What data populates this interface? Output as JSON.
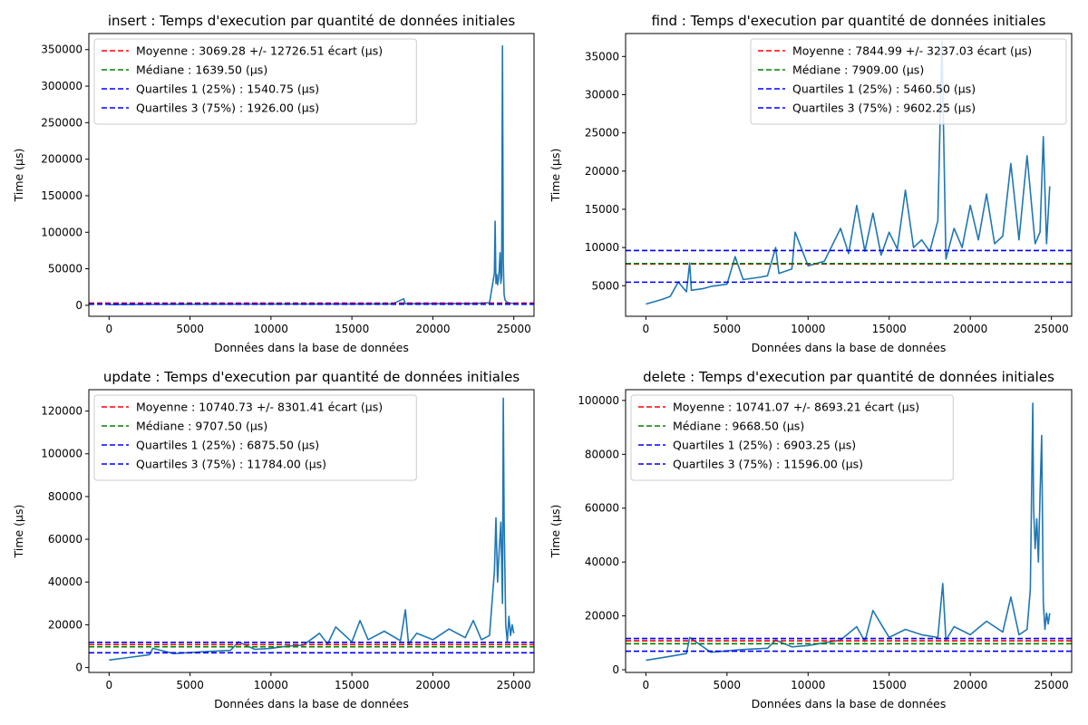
{
  "figure": {
    "background": "#ffffff"
  },
  "colors": {
    "series": "#1f77b4",
    "mean": "#ff0000",
    "median": "#008000",
    "quartile": "#0000ff"
  },
  "chart_data": [
    {
      "type": "line",
      "title": "insert : Temps d'execution par quantité de données initiales",
      "xlabel": "Données dans la base de données",
      "ylabel": "Time (µs)",
      "xlim": [
        -1250,
        26250
      ],
      "ylim": [
        -15000,
        372000
      ],
      "xticks": [
        0,
        5000,
        10000,
        15000,
        20000,
        25000
      ],
      "yticks": [
        0,
        50000,
        100000,
        150000,
        200000,
        250000,
        300000,
        350000
      ],
      "legend_position": "upper left",
      "legend": [
        "Moyenne : 3069.28 +/- 12726.51 écart (µs)",
        "Médiane : 1639.50 (µs)",
        "Quartiles 1 (25%) : 1540.75 (µs)",
        "Quartiles 3 (75%) : 1926.00 (µs)"
      ],
      "hlines": [
        3069.28,
        1639.5,
        1540.75,
        1926.0
      ],
      "series": [
        {
          "x": [
            0,
            2500,
            5000,
            7500,
            10000,
            12500,
            15000,
            17500,
            18200,
            18300,
            20000,
            22500,
            23500,
            23800,
            23850,
            23900,
            23950,
            24000,
            24050,
            24100,
            24150,
            24200,
            24250,
            24300,
            24350,
            24400,
            24450,
            24500,
            24600,
            24800,
            25000
          ],
          "y": [
            1000,
            1400,
            1500,
            1600,
            1700,
            1800,
            1900,
            2000,
            9000,
            2100,
            2200,
            2500,
            3500,
            44000,
            115000,
            30000,
            42000,
            28000,
            35000,
            48000,
            72000,
            30000,
            40000,
            355000,
            60000,
            15000,
            8000,
            6000,
            4000,
            3000,
            2500
          ]
        }
      ]
    },
    {
      "type": "line",
      "title": "find : Temps d'execution par quantité de données initiales",
      "xlabel": "Données dans la base de données",
      "ylabel": "Time (µs)",
      "xlim": [
        -1250,
        26250
      ],
      "ylim": [
        1000,
        38000
      ],
      "xticks": [
        0,
        5000,
        10000,
        15000,
        20000,
        25000
      ],
      "yticks": [
        5000,
        10000,
        15000,
        20000,
        25000,
        30000,
        35000
      ],
      "legend_position": "upper right",
      "legend": [
        "Moyenne : 7844.99 +/- 3237.03 écart (µs)",
        "Médiane : 7909.00 (µs)",
        "Quartiles 1 (25%) : 5460.50 (µs)",
        "Quartiles 3 (75%) : 9602.25 (µs)"
      ],
      "hlines": [
        7844.99,
        7909.0,
        5460.5,
        9602.25
      ],
      "series": [
        {
          "x": [
            0,
            500,
            1000,
            1500,
            2000,
            2500,
            2700,
            2800,
            3500,
            4000,
            5000,
            5500,
            6000,
            7000,
            7500,
            8000,
            8200,
            9000,
            9200,
            10000,
            11000,
            12000,
            12500,
            13000,
            13500,
            14000,
            14500,
            15000,
            15500,
            16000,
            16500,
            17000,
            17500,
            18000,
            18250,
            18500,
            19000,
            19500,
            20000,
            20500,
            21000,
            21500,
            22000,
            22500,
            23000,
            23500,
            24000,
            24300,
            24500,
            24700,
            24900
          ],
          "y": [
            2600,
            2900,
            3200,
            3600,
            5500,
            4200,
            8000,
            4400,
            4600,
            4900,
            5200,
            8800,
            5800,
            6100,
            6300,
            10000,
            6600,
            7200,
            12000,
            7600,
            8200,
            12500,
            9200,
            15500,
            9500,
            14500,
            9000,
            12000,
            9800,
            17500,
            10000,
            11000,
            9500,
            13500,
            37000,
            8500,
            12500,
            10000,
            15500,
            11000,
            17000,
            10500,
            11500,
            21000,
            11000,
            22000,
            10500,
            12000,
            24500,
            10500,
            18000
          ]
        }
      ]
    },
    {
      "type": "line",
      "title": "update : Temps d'execution par quantité de données initiales",
      "xlabel": "Données dans la base de données",
      "ylabel": "Time (µs)",
      "xlim": [
        -1250,
        26250
      ],
      "ylim": [
        -2300,
        130000
      ],
      "xticks": [
        0,
        5000,
        10000,
        15000,
        20000,
        25000
      ],
      "yticks": [
        0,
        20000,
        40000,
        60000,
        80000,
        100000,
        120000
      ],
      "legend_position": "upper left",
      "legend": [
        "Moyenne : 10740.73 +/- 8301.41 écart (µs)",
        "Médiane : 9707.50 (µs)",
        "Quartiles 1 (25%) : 6875.50 (µs)",
        "Quartiles 3 (75%) : 11784.00 (µs)"
      ],
      "hlines": [
        10740.73,
        9707.5,
        6875.5,
        11784.0
      ],
      "series": [
        {
          "x": [
            0,
            1000,
            2500,
            2700,
            4000,
            5000,
            6000,
            7500,
            8000,
            9000,
            10000,
            11000,
            12000,
            13000,
            13500,
            14000,
            15000,
            15500,
            16000,
            17000,
            18000,
            18300,
            18500,
            19000,
            20000,
            21000,
            22000,
            22500,
            23000,
            23500,
            23800,
            23900,
            24000,
            24100,
            24200,
            24300,
            24350,
            24400,
            24500,
            24600,
            24700,
            24800,
            24900,
            25000
          ],
          "y": [
            3500,
            4500,
            6000,
            9000,
            6500,
            7000,
            7500,
            8000,
            12000,
            8500,
            9000,
            10000,
            10500,
            16000,
            11000,
            19000,
            12000,
            22000,
            13000,
            17000,
            12500,
            27000,
            11000,
            16000,
            13000,
            18000,
            14000,
            22000,
            13000,
            15000,
            45000,
            70000,
            40000,
            55000,
            68000,
            30000,
            126000,
            70000,
            20000,
            12000,
            24000,
            15000,
            20000,
            16000
          ]
        }
      ]
    },
    {
      "type": "line",
      "title": "delete : Temps d'execution par quantité de données initiales",
      "xlabel": "Données dans la base de données",
      "ylabel": "Time (µs)",
      "xlim": [
        -1250,
        26250
      ],
      "ylim": [
        -1000,
        104000
      ],
      "xticks": [
        0,
        5000,
        10000,
        15000,
        20000,
        25000
      ],
      "yticks": [
        0,
        20000,
        40000,
        60000,
        80000,
        100000
      ],
      "legend_position": "upper left",
      "legend": [
        "Moyenne : 10741.07 +/- 8693.21 écart (µs)",
        "Médiane : 9668.50 (µs)",
        "Quartiles 1 (25%) : 6903.25 (µs)",
        "Quartiles 3 (75%) : 11596.00 (µs)"
      ],
      "hlines": [
        10741.07,
        9668.5,
        6903.25,
        11596.0
      ],
      "series": [
        {
          "x": [
            0,
            1000,
            2500,
            2700,
            4000,
            5000,
            6000,
            7500,
            8000,
            9000,
            10000,
            11000,
            12000,
            13000,
            13500,
            14000,
            15000,
            16000,
            17000,
            18000,
            18300,
            18500,
            19000,
            20000,
            21000,
            22000,
            22500,
            23000,
            23500,
            23700,
            23850,
            23900,
            24000,
            24100,
            24200,
            24300,
            24400,
            24500,
            24600,
            24700,
            24800,
            24900
          ],
          "y": [
            3500,
            4500,
            6000,
            12000,
            6500,
            7000,
            7500,
            8000,
            11000,
            8500,
            9000,
            10000,
            11000,
            16000,
            10500,
            22000,
            12000,
            15000,
            13000,
            12000,
            32000,
            11000,
            16000,
            13000,
            18000,
            14000,
            27000,
            13000,
            15000,
            30000,
            99000,
            60000,
            45000,
            56000,
            40000,
            65000,
            87000,
            25000,
            15000,
            21000,
            17000,
            21000
          ]
        }
      ]
    }
  ]
}
